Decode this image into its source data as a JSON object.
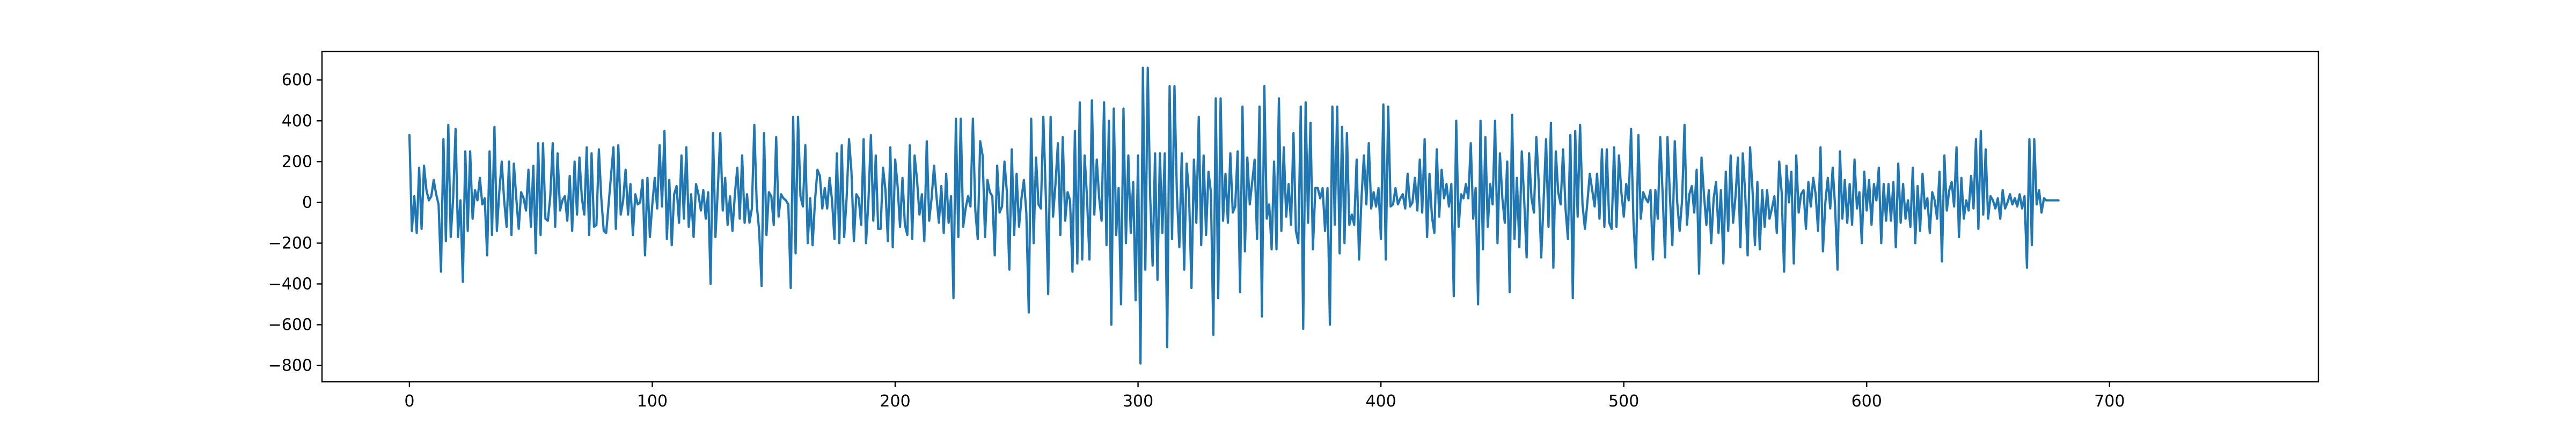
{
  "chart_data": {
    "type": "line",
    "title": "",
    "xlabel": "",
    "ylabel": "",
    "xlim": [
      -36,
      786
    ],
    "ylim": [
      -880,
      740
    ],
    "xticks": [
      0,
      100,
      200,
      300,
      400,
      500,
      600,
      700
    ],
    "yticks": [
      -800,
      -600,
      -400,
      -200,
      0,
      200,
      400,
      600
    ],
    "grid": false,
    "legend": "none",
    "series": [
      {
        "color": "#1f77b4",
        "x_start": 0,
        "x_step": 1,
        "values": [
          330,
          -140,
          30,
          -150,
          170,
          -130,
          180,
          60,
          10,
          30,
          110,
          40,
          -10,
          -340,
          310,
          -190,
          380,
          -170,
          20,
          360,
          -170,
          10,
          -390,
          250,
          -140,
          250,
          -80,
          60,
          10,
          120,
          -10,
          20,
          -260,
          250,
          -160,
          370,
          -140,
          50,
          200,
          10,
          -120,
          200,
          -160,
          190,
          20,
          -130,
          50,
          20,
          -40,
          160,
          -120,
          180,
          -250,
          290,
          -160,
          290,
          -80,
          -90,
          30,
          290,
          -120,
          240,
          -40,
          10,
          30,
          -90,
          130,
          -140,
          200,
          -60,
          220,
          20,
          -60,
          270,
          -160,
          240,
          -120,
          -110,
          260,
          20,
          -140,
          -150,
          -10,
          130,
          270,
          -130,
          280,
          -60,
          10,
          160,
          -60,
          90,
          -160,
          40,
          -10,
          0,
          110,
          -260,
          120,
          -170,
          -10,
          120,
          -30,
          280,
          -20,
          350,
          -180,
          110,
          -210,
          40,
          80,
          -100,
          230,
          -80,
          270,
          -120,
          40,
          -170,
          90,
          40,
          -40,
          60,
          -80,
          50,
          -400,
          340,
          -170,
          70,
          340,
          -40,
          120,
          -110,
          30,
          -140,
          40,
          170,
          -80,
          230,
          -100,
          40,
          -100,
          -30,
          380,
          -10,
          -140,
          -410,
          340,
          -160,
          50,
          30,
          -110,
          320,
          -70,
          40,
          20,
          10,
          -10,
          -420,
          420,
          -250,
          420,
          30,
          -20,
          280,
          -200,
          20,
          -210,
          10,
          160,
          130,
          -30,
          70,
          -30,
          120,
          10,
          -180,
          240,
          -200,
          280,
          -170,
          20,
          310,
          150,
          -190,
          40,
          20,
          -110,
          310,
          -200,
          10,
          330,
          -90,
          230,
          -130,
          -130,
          170,
          60,
          -190,
          270,
          -220,
          210,
          80,
          -120,
          120,
          -110,
          -160,
          280,
          -180,
          230,
          110,
          -60,
          40,
          -190,
          300,
          -90,
          20,
          180,
          30,
          -100,
          80,
          -150,
          140,
          -100,
          30,
          -470,
          410,
          -170,
          410,
          -120,
          -30,
          30,
          -20,
          410,
          -40,
          -180,
          300,
          230,
          -170,
          110,
          50,
          30,
          -260,
          180,
          -50,
          -20,
          200,
          50,
          -330,
          260,
          -160,
          140,
          -120,
          20,
          110,
          -50,
          -540,
          410,
          -200,
          220,
          -10,
          -30,
          420,
          40,
          -450,
          420,
          -70,
          90,
          290,
          -160,
          320,
          -90,
          50,
          10,
          -340,
          350,
          -300,
          490,
          -280,
          230,
          20,
          -280,
          500,
          -60,
          210,
          20,
          -90,
          490,
          -210,
          400,
          -600,
          460,
          -160,
          70,
          -500,
          460,
          -200,
          230,
          -150,
          100,
          -480,
          230,
          -790,
          660,
          -330,
          660,
          30,
          -310,
          240,
          -380,
          240,
          -150,
          240,
          -710,
          570,
          -180,
          570,
          40,
          -220,
          240,
          -330,
          190,
          40,
          -420,
          210,
          -100,
          420,
          -210,
          230,
          -160,
          150,
          50,
          -650,
          510,
          -470,
          510,
          -90,
          140,
          -100,
          240,
          -50,
          -20,
          250,
          -440,
          470,
          -240,
          220,
          -10,
          100,
          210,
          -180,
          470,
          -560,
          570,
          -80,
          -10,
          -230,
          200,
          -230,
          510,
          -140,
          270,
          -70,
          90,
          -110,
          340,
          -140,
          -200,
          470,
          -620,
          490,
          -100,
          390,
          -230,
          70,
          70,
          20,
          70,
          -140,
          70,
          -600,
          470,
          -110,
          470,
          -250,
          370,
          -200,
          340,
          -110,
          -60,
          -110,
          210,
          -280,
          20,
          230,
          -10,
          290,
          -30,
          50,
          -20,
          70,
          -180,
          480,
          -280,
          470,
          -20,
          -10,
          70,
          -10,
          20,
          40,
          -30,
          140,
          -20,
          0,
          120,
          -40,
          210,
          -50,
          310,
          -170,
          140,
          -70,
          -150,
          260,
          -70,
          160,
          20,
          90,
          -20,
          90,
          -460,
          400,
          -120,
          40,
          20,
          90,
          20,
          290,
          -80,
          70,
          -500,
          400,
          -230,
          320,
          -120,
          90,
          -10,
          400,
          -200,
          240,
          20,
          -100,
          200,
          -440,
          430,
          -180,
          120,
          -220,
          250,
          10,
          -270,
          240,
          20,
          -50,
          320,
          90,
          -270,
          10,
          310,
          -120,
          390,
          -320,
          250,
          50,
          -10,
          260,
          -30,
          -180,
          330,
          -470,
          350,
          -70,
          380,
          -10,
          -130,
          0,
          140,
          60,
          -20,
          140,
          -80,
          260,
          -120,
          260,
          -100,
          -130,
          270,
          -120,
          230,
          50,
          -70,
          90,
          10,
          360,
          -100,
          -320,
          330,
          -80,
          50,
          20,
          0,
          60,
          -280,
          60,
          -80,
          320,
          40,
          -270,
          320,
          30,
          -210,
          300,
          0,
          -140,
          10,
          380,
          -110,
          40,
          80,
          -50,
          160,
          -350,
          220,
          40,
          -110,
          60,
          -200,
          20,
          100,
          -150,
          60,
          -300,
          150,
          -140,
          230,
          -100,
          30,
          220,
          -220,
          240,
          40,
          -260,
          270,
          60,
          -210,
          100,
          -230,
          60,
          -120,
          60,
          -80,
          -30,
          30,
          -150,
          200,
          50,
          -340,
          180,
          0,
          150,
          -300,
          230,
          -50,
          40,
          60,
          -130,
          100,
          -20,
          120,
          40,
          -140,
          270,
          -240,
          0,
          120,
          -30,
          170,
          -20,
          -330,
          250,
          -80,
          110,
          -100,
          90,
          -110,
          210,
          -30,
          50,
          -200,
          150,
          -40,
          110,
          -110,
          90,
          10,
          170,
          -200,
          90,
          -90,
          90,
          -90,
          100,
          -220,
          190,
          -100,
          90,
          -80,
          10,
          -120,
          170,
          -200,
          80,
          -140,
          140,
          -30,
          20,
          -150,
          50,
          10,
          -80,
          150,
          -290,
          230,
          -40,
          60,
          100,
          -20,
          270,
          -170,
          120,
          -80,
          10,
          -40,
          130,
          -30,
          310,
          -130,
          350,
          -60,
          260,
          -80,
          30,
          10,
          -30,
          20,
          -80,
          60,
          -30,
          0,
          40,
          -10,
          20,
          -20,
          40,
          -30,
          30,
          -320,
          310,
          -210,
          310,
          -10,
          60,
          -50,
          20,
          10,
          10,
          10,
          10,
          10,
          10
        ]
      }
    ]
  }
}
